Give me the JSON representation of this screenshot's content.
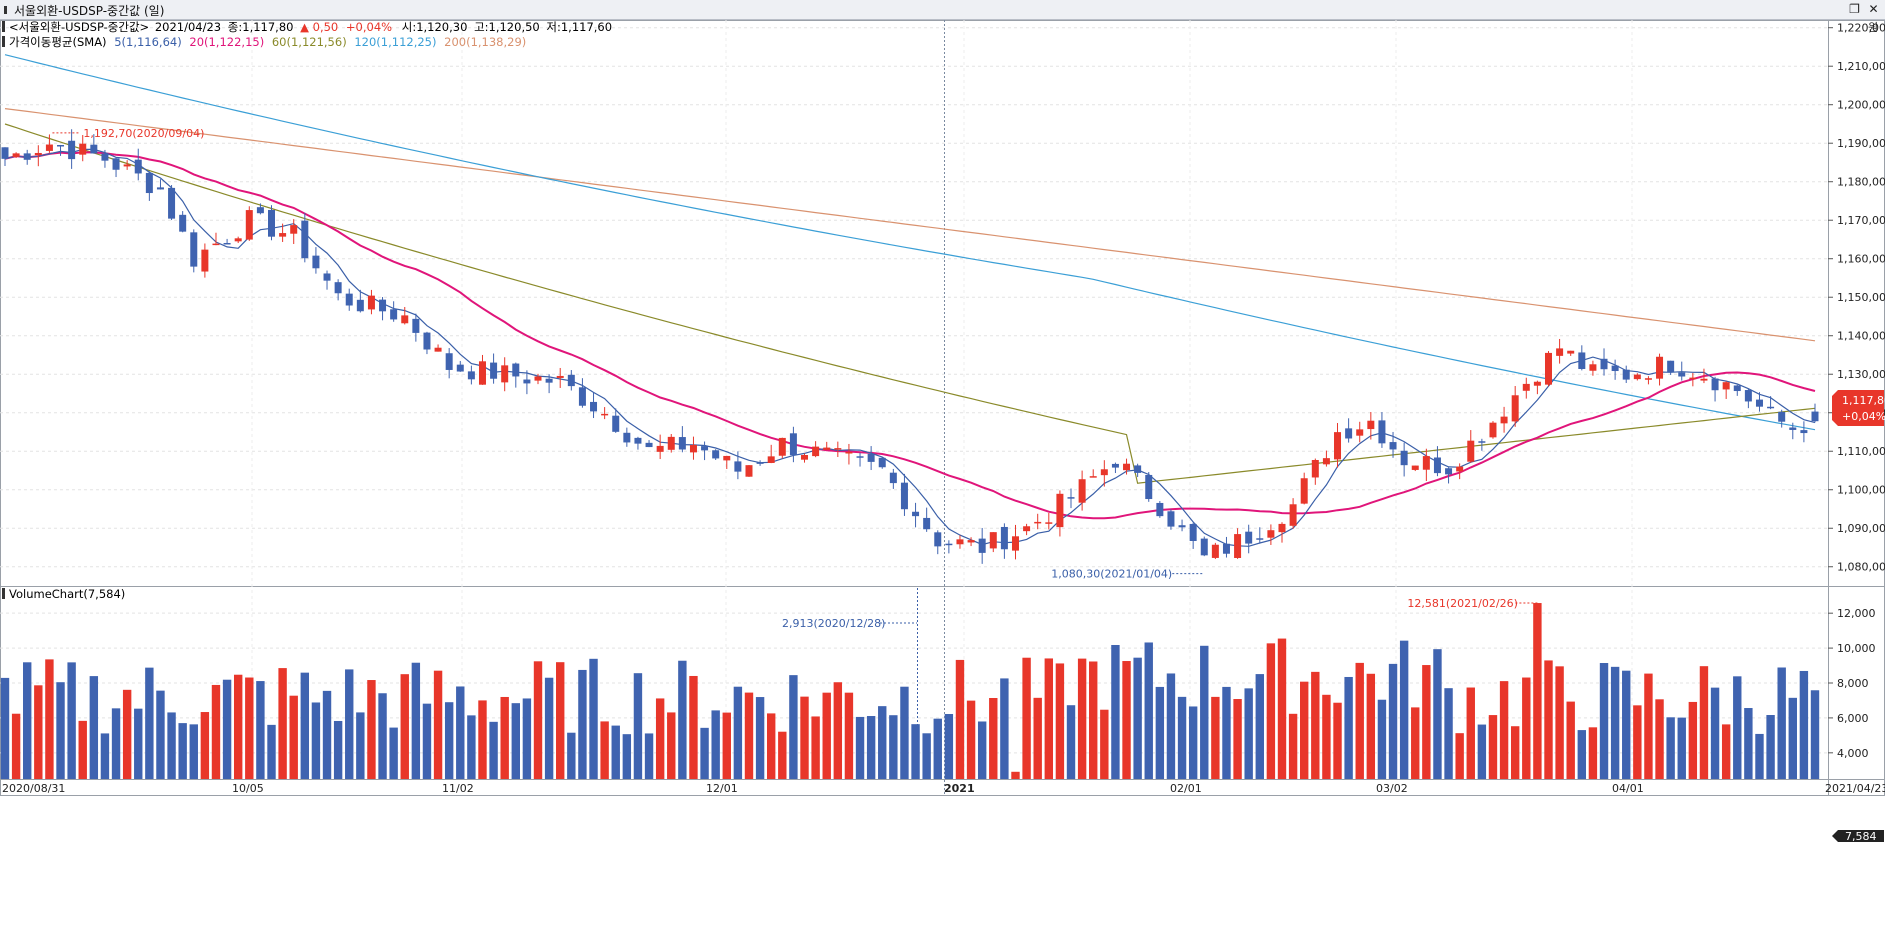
{
  "window": {
    "title": "서울외환-USDSP-중간값 (일)",
    "restore_icon": "restore-icon",
    "close_icon": "close-icon"
  },
  "price_panel": {
    "header": {
      "name": "<서울외환-USDSP-중간값>",
      "date": "2021/04/23",
      "close": "종:1,117,80",
      "change_mark": "▲",
      "change": "0,50",
      "change_pct": "+0,04%",
      "open": "시:1,120,30",
      "high": "고:1,120,50",
      "low": "저:1,117,60"
    },
    "sma_header": {
      "label": "가격이동평균(SMA)",
      "items": [
        {
          "text": "5(1,116,64)",
          "color": "#3a5fa8"
        },
        {
          "text": "20(1,122,15)",
          "color": "#e0157a"
        },
        {
          "text": "60(1,121,56)",
          "color": "#8a8a2a"
        },
        {
          "text": "120(1,112,25)",
          "color": "#3b9fd6"
        },
        {
          "text": "200(1,138,29)",
          "color": "#d9926f"
        }
      ]
    },
    "y_labels": [
      "1,220,00",
      "1,210,00",
      "1,200,00",
      "1,190,00",
      "1,180,00",
      "1,170,00",
      "1,160,00",
      "1,150,00",
      "1,140,00",
      "1,130,00",
      "1,120,00",
      "1,110,00",
      "1,100,00",
      "1,090,00",
      "1,080,00"
    ],
    "corner_label": "원",
    "last_price_box": "1,117,80",
    "last_change_box": "+0,04%",
    "high_annotation": "1,192,70(2020/09/04)",
    "low_annotation": "1,080,30(2021/01/04)"
  },
  "volume_panel": {
    "header": "VolumeChart(7,584)",
    "y_labels": [
      "12,000",
      "10,000",
      "8,000",
      "6,000",
      "4,000"
    ],
    "last_box": "7,584",
    "high_annotation": "12,581(2021/02/26)",
    "low_annotation": "2,913(2020/12/28)"
  },
  "x_labels": [
    "2020/08/31",
    "10/05",
    "11/02",
    "12/01",
    "2021",
    "02/01",
    "03/02",
    "04/01",
    "2021/04/23"
  ],
  "colors": {
    "up": "#e8362a",
    "down": "#3f63b0",
    "sma5": "#3a5fa8",
    "sma20": "#e0157a",
    "sma60": "#8a8a2a",
    "sma120": "#3b9fd6",
    "sma200": "#d9926f",
    "annotation_up": "#e8362a",
    "annotation_down": "#3a5fa8"
  },
  "chart_data": {
    "type": "candlestick",
    "title": "서울외환-USDSP-중간값 (일)",
    "x_range": [
      "2020/08/31",
      "2021/04/23"
    ],
    "y_range": [
      1075,
      1222
    ],
    "ohlc_sample": [
      {
        "date": "2020/08/31",
        "open": 1188,
        "high": 1189,
        "low": 1180,
        "close": 1181
      },
      {
        "date": "2020/09/04",
        "open": 1190,
        "high": 1192.7,
        "low": 1189,
        "close": 1192
      },
      {
        "date": "2020/10/05",
        "open": 1171,
        "high": 1172,
        "low": 1165,
        "close": 1168
      },
      {
        "date": "2020/11/02",
        "open": 1132,
        "high": 1140,
        "low": 1126,
        "close": 1137
      },
      {
        "date": "2020/12/01",
        "open": 1107,
        "high": 1108,
        "low": 1102,
        "close": 1103
      },
      {
        "date": "2021/01/04",
        "open": 1086,
        "high": 1088,
        "low": 1080.3,
        "close": 1081
      },
      {
        "date": "2021/02/01",
        "open": 1117,
        "high": 1121,
        "low": 1114,
        "close": 1118
      },
      {
        "date": "2021/03/02",
        "open": 1123,
        "high": 1130,
        "low": 1120,
        "close": 1126
      },
      {
        "date": "2021/04/01",
        "open": 1126,
        "high": 1128,
        "low": 1120,
        "close": 1122
      },
      {
        "date": "2021/04/23",
        "open": 1120.3,
        "high": 1120.5,
        "low": 1117.6,
        "close": 1117.8
      }
    ],
    "sma_last": {
      "5": 1116.64,
      "20": 1122.15,
      "60": 1121.56,
      "120": 1112.25,
      "200": 1138.29
    },
    "volume_last": 7584,
    "volume_range": [
      2500,
      13500
    ]
  }
}
